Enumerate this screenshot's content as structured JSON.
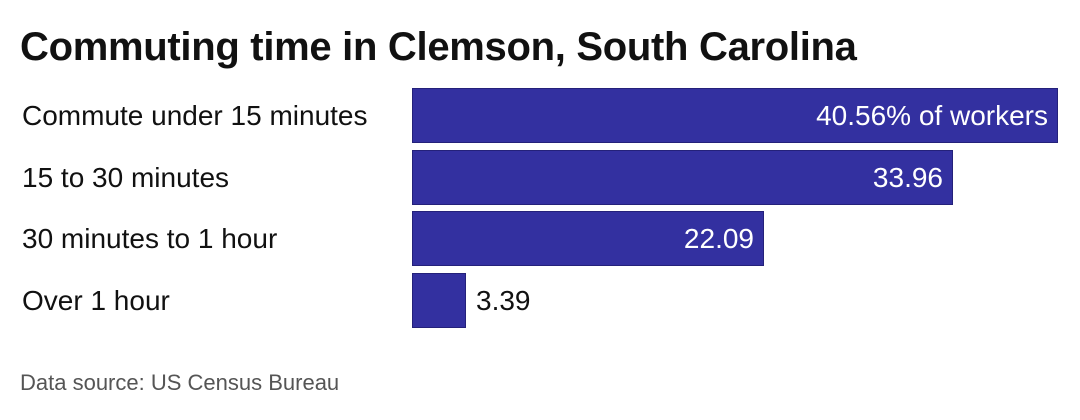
{
  "chart_data": {
    "type": "bar",
    "orientation": "horizontal",
    "title": "Commuting time in Clemson, South Carolina",
    "categories": [
      "Commute under 15 minutes",
      "15 to 30 minutes",
      "30 minutes to 1 hour",
      "Over 1 hour"
    ],
    "values": [
      40.56,
      33.96,
      22.09,
      3.39
    ],
    "value_labels": [
      "40.56% of workers",
      "33.96",
      "22.09",
      "3.39"
    ],
    "unit": "% of workers",
    "xlim": [
      0,
      40.56
    ],
    "grid": false,
    "legend": "none",
    "bar_color": "#3330a0",
    "source": "Data source: US Census Bureau"
  }
}
